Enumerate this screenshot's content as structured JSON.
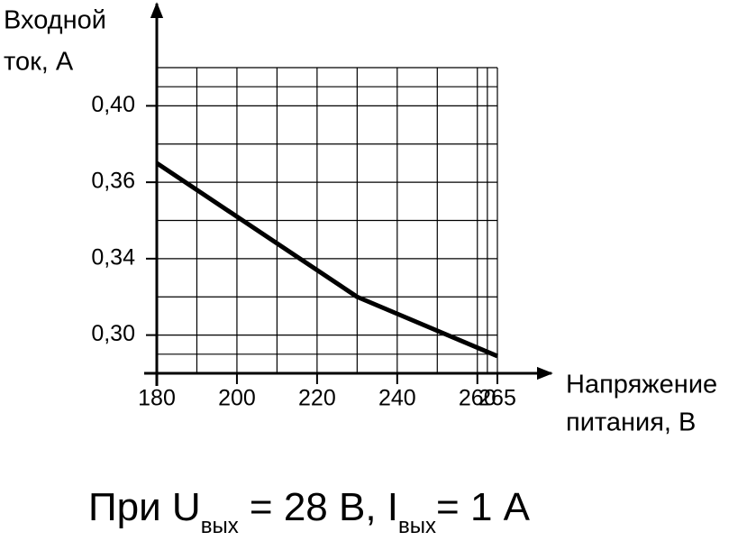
{
  "chart_data": {
    "type": "line",
    "ylabel": [
      "Входной",
      "ток, А"
    ],
    "xlabel": [
      "Напряжение",
      "питания, В"
    ],
    "annotation": [
      "При U",
      "вых",
      " = 28 В, I",
      "вых",
      "= 1 А"
    ],
    "x": [
      180,
      230,
      265
    ],
    "series": [
      {
        "color": "#000000",
        "values": [
          0.37,
          0.32,
          0.289
        ]
      }
    ],
    "xlim": [
      180,
      265
    ],
    "xticks": [
      180,
      200,
      220,
      240,
      260,
      265
    ],
    "ylim": [
      0.28,
      0.42
    ],
    "yticks": [
      {
        "value": 0.3,
        "label": "0,30"
      },
      {
        "value": 0.34,
        "label": "0,34"
      },
      {
        "value": 0.36,
        "label": "0,36"
      },
      {
        "value": 0.4,
        "label": "0,40"
      }
    ],
    "grid": true
  }
}
